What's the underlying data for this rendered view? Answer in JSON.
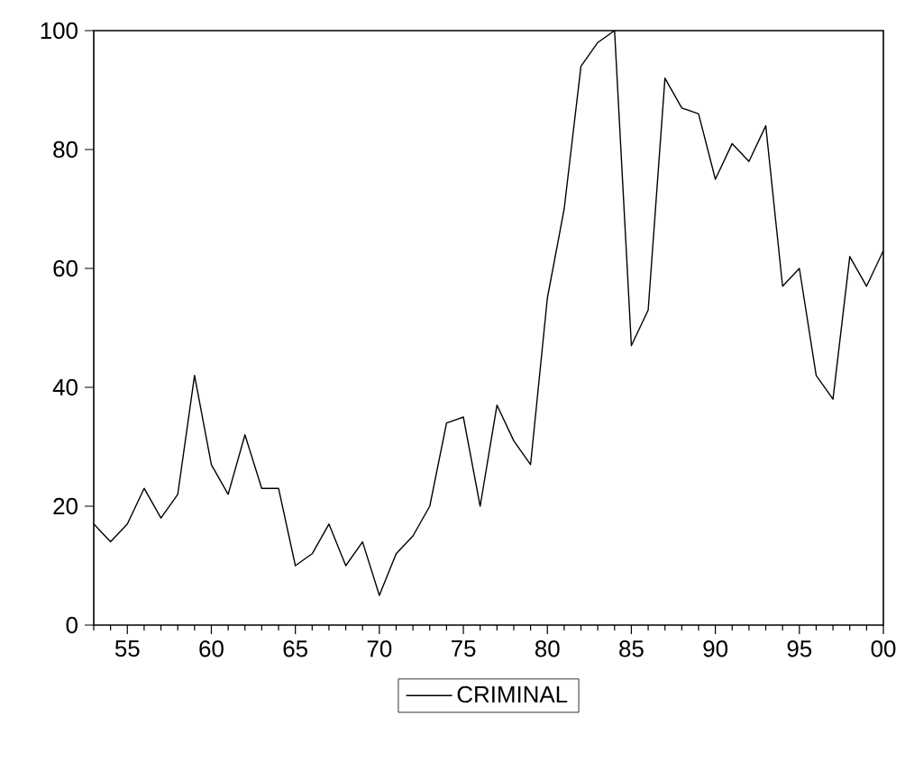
{
  "chart_data": {
    "type": "line",
    "x": [
      1953,
      1954,
      1955,
      1956,
      1957,
      1958,
      1959,
      1960,
      1961,
      1962,
      1963,
      1964,
      1965,
      1966,
      1967,
      1968,
      1969,
      1970,
      1971,
      1972,
      1973,
      1974,
      1975,
      1976,
      1977,
      1978,
      1979,
      1980,
      1981,
      1982,
      1983,
      1984,
      1985,
      1986,
      1987,
      1988,
      1989,
      1990,
      1991,
      1992,
      1993,
      1994,
      1995,
      1996,
      1997,
      1998,
      1999,
      2000
    ],
    "series": [
      {
        "name": "CRIMINAL",
        "color": "#000000",
        "values": [
          17,
          14,
          17,
          23,
          18,
          22,
          42,
          27,
          22,
          32,
          23,
          23,
          10,
          12,
          17,
          10,
          14,
          5,
          12,
          15,
          20,
          34,
          35,
          20,
          37,
          31,
          27,
          55,
          70,
          94,
          98,
          100,
          47,
          53,
          92,
          87,
          86,
          75,
          81,
          78,
          84,
          57,
          60,
          42,
          38,
          62,
          57,
          63
        ]
      }
    ],
    "xlim": [
      1953,
      2000
    ],
    "ylim": [
      0,
      100
    ],
    "xticks": [
      {
        "value": 1953,
        "label": null
      },
      {
        "value": 1954,
        "label": null
      },
      {
        "value": 1955,
        "label": "55"
      },
      {
        "value": 1956,
        "label": null
      },
      {
        "value": 1957,
        "label": null
      },
      {
        "value": 1958,
        "label": null
      },
      {
        "value": 1959,
        "label": null
      },
      {
        "value": 1960,
        "label": "60"
      },
      {
        "value": 1961,
        "label": null
      },
      {
        "value": 1962,
        "label": null
      },
      {
        "value": 1963,
        "label": null
      },
      {
        "value": 1964,
        "label": null
      },
      {
        "value": 1965,
        "label": "65"
      },
      {
        "value": 1966,
        "label": null
      },
      {
        "value": 1967,
        "label": null
      },
      {
        "value": 1968,
        "label": null
      },
      {
        "value": 1969,
        "label": null
      },
      {
        "value": 1970,
        "label": "70"
      },
      {
        "value": 1971,
        "label": null
      },
      {
        "value": 1972,
        "label": null
      },
      {
        "value": 1973,
        "label": null
      },
      {
        "value": 1974,
        "label": null
      },
      {
        "value": 1975,
        "label": "75"
      },
      {
        "value": 1976,
        "label": null
      },
      {
        "value": 1977,
        "label": null
      },
      {
        "value": 1978,
        "label": null
      },
      {
        "value": 1979,
        "label": null
      },
      {
        "value": 1980,
        "label": "80"
      },
      {
        "value": 1981,
        "label": null
      },
      {
        "value": 1982,
        "label": null
      },
      {
        "value": 1983,
        "label": null
      },
      {
        "value": 1984,
        "label": null
      },
      {
        "value": 1985,
        "label": "85"
      },
      {
        "value": 1986,
        "label": null
      },
      {
        "value": 1987,
        "label": null
      },
      {
        "value": 1988,
        "label": null
      },
      {
        "value": 1989,
        "label": null
      },
      {
        "value": 1990,
        "label": "90"
      },
      {
        "value": 1991,
        "label": null
      },
      {
        "value": 1992,
        "label": null
      },
      {
        "value": 1993,
        "label": null
      },
      {
        "value": 1994,
        "label": null
      },
      {
        "value": 1995,
        "label": "95"
      },
      {
        "value": 1996,
        "label": null
      },
      {
        "value": 1997,
        "label": null
      },
      {
        "value": 1998,
        "label": null
      },
      {
        "value": 1999,
        "label": null
      },
      {
        "value": 2000,
        "label": "00"
      }
    ],
    "yticks": [
      0,
      20,
      40,
      60,
      80,
      100
    ],
    "grid": false,
    "legend": "bottom",
    "marker": "none",
    "line_style": "solid"
  }
}
